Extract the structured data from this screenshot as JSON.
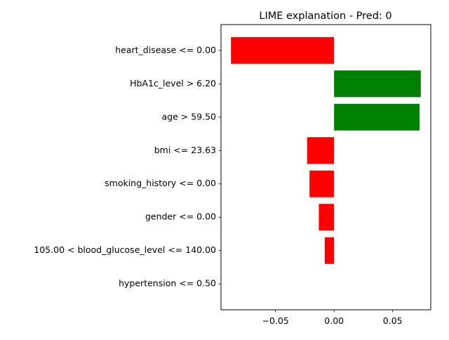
{
  "chart_data": {
    "type": "bar",
    "orientation": "horizontal",
    "title": "LIME explanation - Pred: 0",
    "xlabel": "",
    "ylabel": "",
    "categories": [
      "heart_disease <= 0.00",
      "HbA1c_level > 6.20",
      "age > 59.50",
      "bmi <= 23.63",
      "smoking_history <= 0.00",
      "gender <= 0.00",
      "105.00 < blood_glucose_level <= 140.00",
      "hypertension <= 0.50"
    ],
    "values": [
      -0.088,
      0.074,
      0.073,
      -0.023,
      -0.021,
      -0.013,
      -0.008,
      0.0
    ],
    "xlim": [
      -0.0965,
      0.0825
    ],
    "x_ticks": [
      -0.05,
      0.0,
      0.05
    ],
    "x_tick_labels": [
      "−0.05",
      "0.00",
      "0.05"
    ],
    "colors": {
      "positive": "#008000",
      "negative": "#ff0000"
    },
    "grid": false
  }
}
